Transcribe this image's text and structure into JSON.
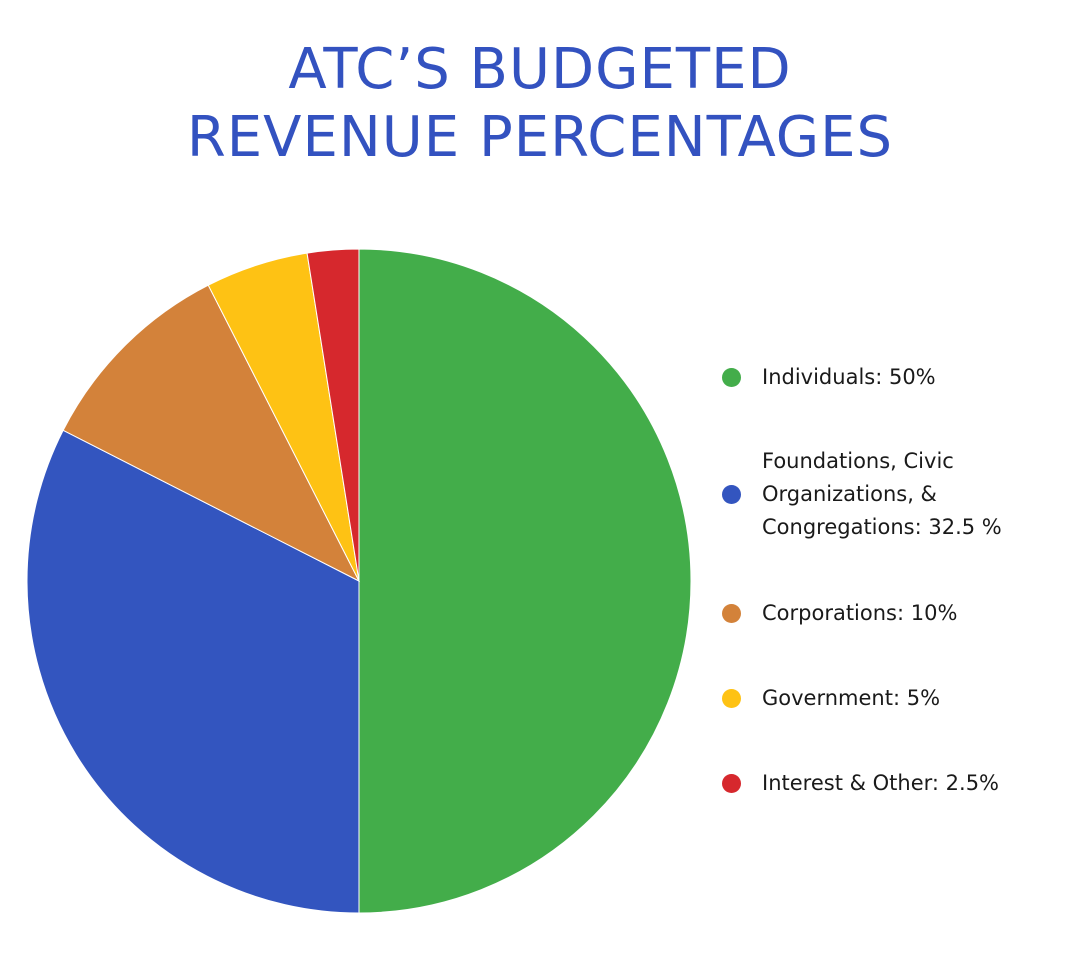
{
  "title": {
    "line1": "ATC’S BUDGETED",
    "line2": "REVENUE PERCENTAGES"
  },
  "colors": {
    "title": "#3352c0",
    "individuals": "#43ad4a",
    "foundations": "#3355bf",
    "corporations": "#d3823a",
    "government": "#fec214",
    "interest": "#d6282d"
  },
  "chart_data": {
    "type": "pie",
    "title": "ATC’S BUDGETED REVENUE PERCENTAGES",
    "start": "12 o'clock",
    "direction": "clockwise",
    "legend_position": "right",
    "categories": [
      "Individuals",
      "Foundations, Civic Organizations, & Congregations",
      "Corporations",
      "Government",
      "Interest & Other"
    ],
    "values": [
      50,
      32.5,
      10,
      5,
      2.5
    ],
    "unit": "%",
    "legend": [
      {
        "label": "Individuals:  50%",
        "color": "#43ad4a"
      },
      {
        "label": "Foundations, Civic\nOrganizations, &\nCongregations:  32.5 %",
        "color": "#3355bf"
      },
      {
        "label": "Corporations:  10%",
        "color": "#d3823a"
      },
      {
        "label": "Government:  5%",
        "color": "#fec214"
      },
      {
        "label": "Interest & Other:  2.5%",
        "color": "#d6282d"
      }
    ]
  }
}
